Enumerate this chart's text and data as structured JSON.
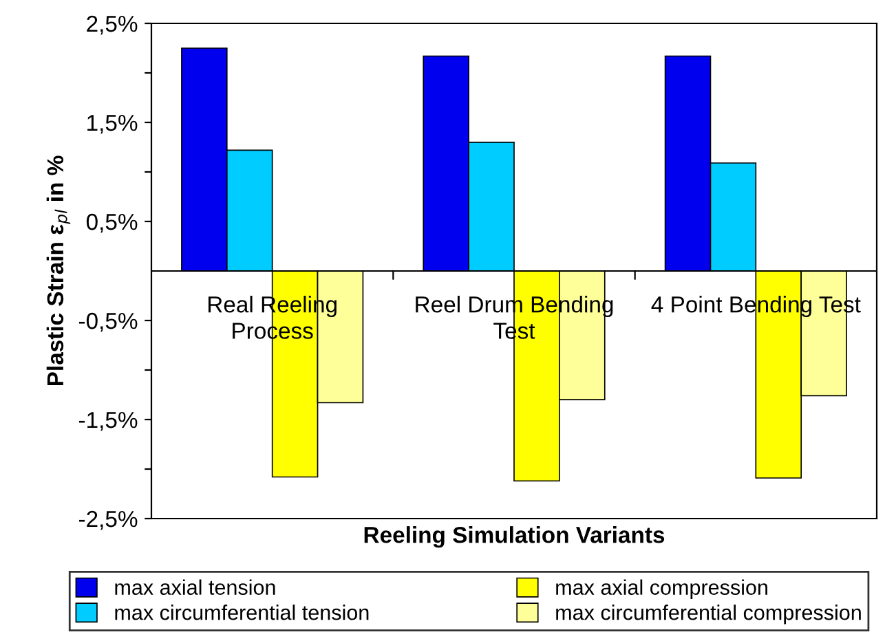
{
  "chart_data": {
    "type": "bar",
    "xlabel": "Reeling Simulation Variants",
    "ylabel": "Plastic Strain ε$_{pl}$ in %",
    "categories": [
      "Real Reeling\nProcess",
      "Reel Drum Bending\nTest",
      "4 Point Bending Test"
    ],
    "series": [
      {
        "name": "max axial tension",
        "color": "#0000ee",
        "values": [
          2.25,
          2.17,
          2.17
        ]
      },
      {
        "name": "max circumferential tension",
        "color": "#00ccff",
        "values": [
          1.22,
          1.3,
          1.09
        ]
      },
      {
        "name": "max axial compression",
        "color": "#ffff00",
        "values": [
          -2.08,
          -2.12,
          -2.09
        ]
      },
      {
        "name": "max circumferential compression",
        "color": "#ffff99",
        "values": [
          -1.33,
          -1.3,
          -1.26
        ]
      }
    ],
    "ylim": [
      -2.5,
      2.5
    ],
    "yticks": [
      {
        "value": 2.5,
        "label": "2,5%"
      },
      {
        "value": 2.0,
        "label": null
      },
      {
        "value": 1.5,
        "label": "1,5%"
      },
      {
        "value": 1.0,
        "label": null
      },
      {
        "value": 0.5,
        "label": "0,5%"
      },
      {
        "value": -0.5,
        "label": "-0,5%"
      },
      {
        "value": -1.0,
        "label": null
      },
      {
        "value": -1.5,
        "label": "-1,5%"
      },
      {
        "value": -2.0,
        "label": null
      },
      {
        "value": -2.5,
        "label": "-2,5%"
      }
    ],
    "grid": false,
    "legend": "bottom"
  }
}
